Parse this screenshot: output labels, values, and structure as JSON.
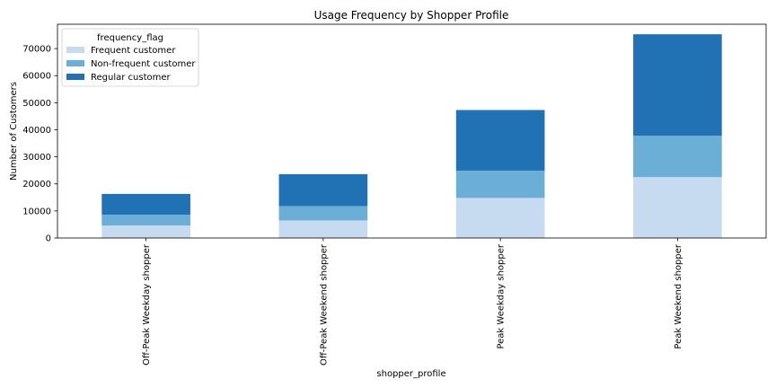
{
  "chart_data": {
    "type": "bar",
    "stacked": true,
    "title": "Usage Frequency by Shopper Profile",
    "xlabel": "shopper_profile",
    "ylabel": "Number of Customers",
    "categories": [
      "Off-Peak Weekday shopper",
      "Off-Peak Weekend shopper",
      "Peak Weekday shopper",
      "Peak Weekend shopper"
    ],
    "series": [
      {
        "name": "Frequent customer",
        "color": "#c6dbef",
        "values": [
          4600,
          6500,
          14800,
          22500
        ]
      },
      {
        "name": "Non-frequent customer",
        "color": "#6baed6",
        "values": [
          4000,
          5300,
          10100,
          15300
        ]
      },
      {
        "name": "Regular customer",
        "color": "#2171b5",
        "values": [
          7700,
          11800,
          22400,
          37500
        ]
      }
    ],
    "ylim": [
      0,
      79000
    ],
    "yticks": [
      0,
      10000,
      20000,
      30000,
      40000,
      50000,
      60000,
      70000
    ],
    "legend": {
      "title": "frequency_flag",
      "placement": "top-left"
    },
    "grid": false
  }
}
